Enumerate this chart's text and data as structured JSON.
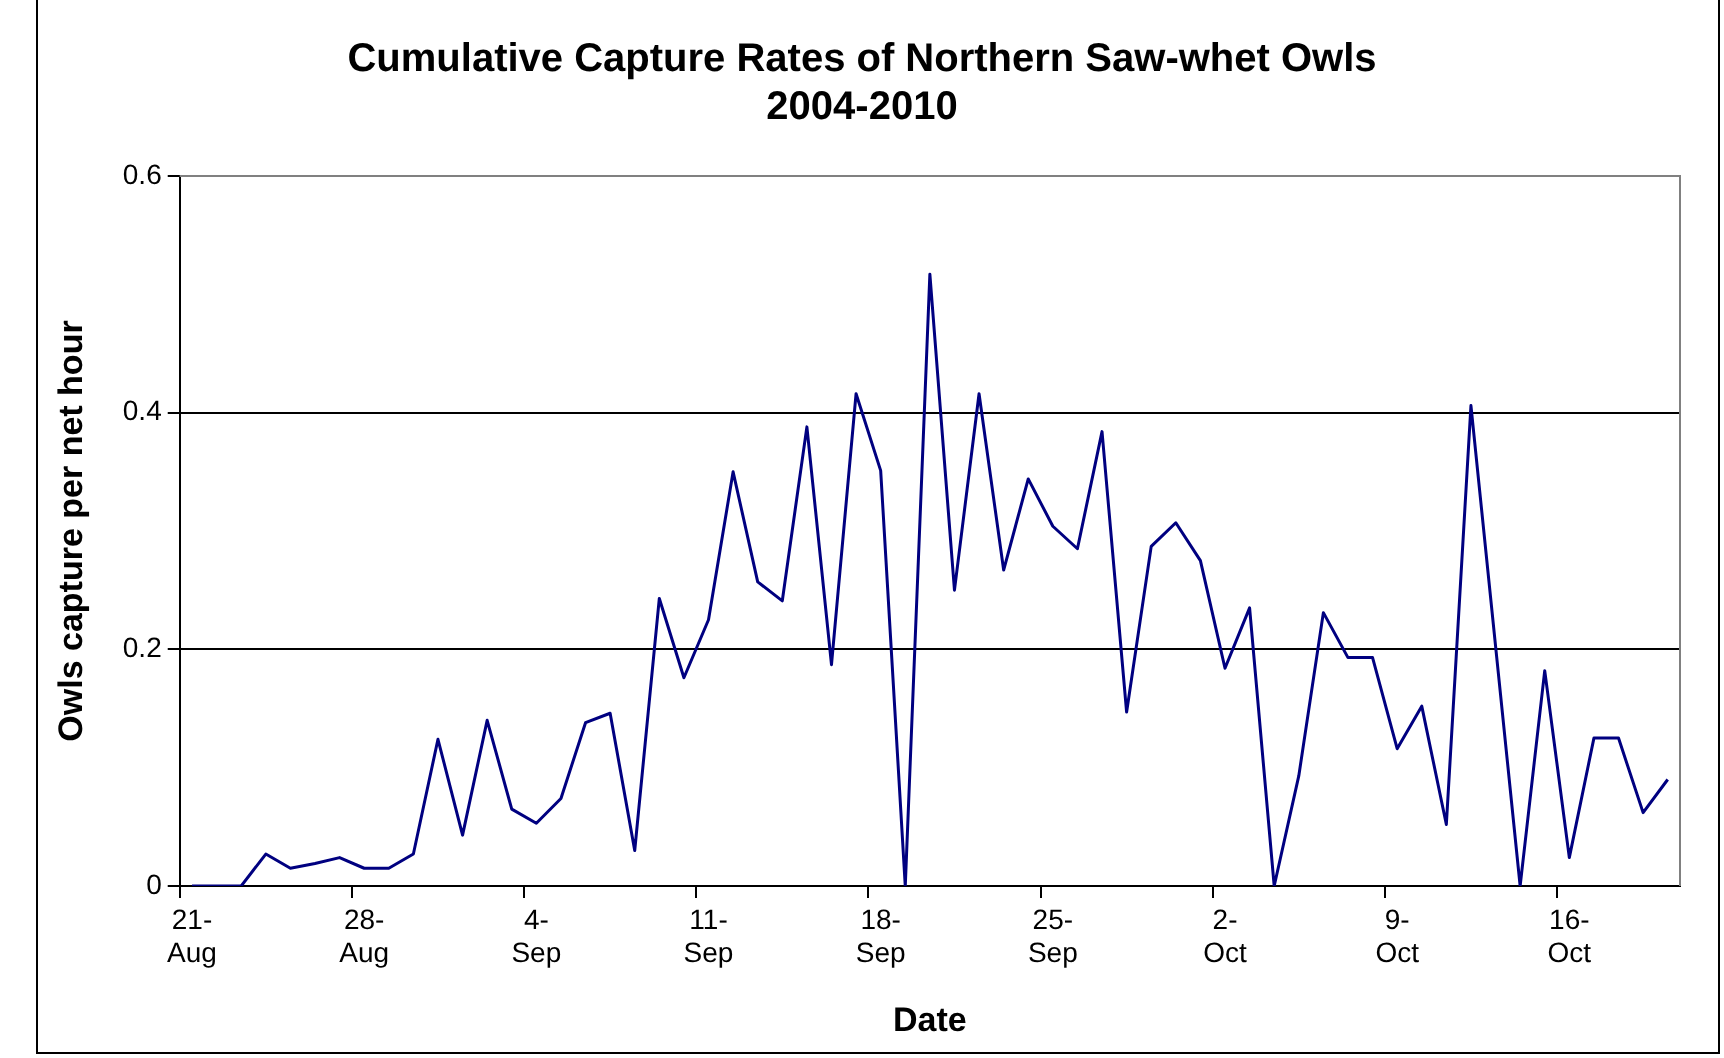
{
  "chart_data": {
    "type": "line",
    "title": "Cumulative Capture Rates of Northern Saw-whet Owls\n2004-2010",
    "xlabel": "Date",
    "ylabel": "Owls capture per net hour",
    "categories": [
      "21-Aug",
      null,
      null,
      null,
      null,
      null,
      null,
      "28-Aug",
      null,
      null,
      null,
      null,
      null,
      null,
      "4-Sep",
      null,
      null,
      null,
      null,
      null,
      null,
      "11-Sep",
      null,
      null,
      null,
      null,
      null,
      null,
      "18-Sep",
      null,
      null,
      null,
      null,
      null,
      null,
      "25-Sep",
      null,
      null,
      null,
      null,
      null,
      null,
      "2-Oct",
      null,
      null,
      null,
      null,
      null,
      null,
      "9-Oct",
      null,
      null,
      null,
      null,
      null,
      null,
      "16-Oct",
      null,
      null,
      null,
      null
    ],
    "series": [
      {
        "color": "#000080",
        "values": [
          0,
          0,
          0,
          0.027,
          0.015,
          0.019,
          0.024,
          0.015,
          0.015,
          0.027,
          0.124,
          0.043,
          0.14,
          0.065,
          0.053,
          0.074,
          0.138,
          0.146,
          0.03,
          0.243,
          0.176,
          0.225,
          0.35,
          0.257,
          0.241,
          0.388,
          0.187,
          0.416,
          0.351,
          0,
          0.517,
          0.25,
          0.416,
          0.267,
          0.344,
          0.304,
          0.285,
          0.384,
          0.147,
          0.287,
          0.307,
          0.275,
          0.184,
          0.235,
          0,
          0.093,
          0.231,
          0.193,
          0.193,
          0.116,
          0.152,
          0.052,
          0.406,
          0.203,
          0,
          0.182,
          0.024,
          0.125,
          0.125,
          0.062,
          0.09
        ]
      }
    ],
    "ylim": [
      0,
      0.6
    ],
    "yticks": [
      0,
      0.2,
      0.4,
      0.6
    ],
    "grid": "y",
    "legend": false,
    "marker": "none",
    "line_style": "solid"
  }
}
